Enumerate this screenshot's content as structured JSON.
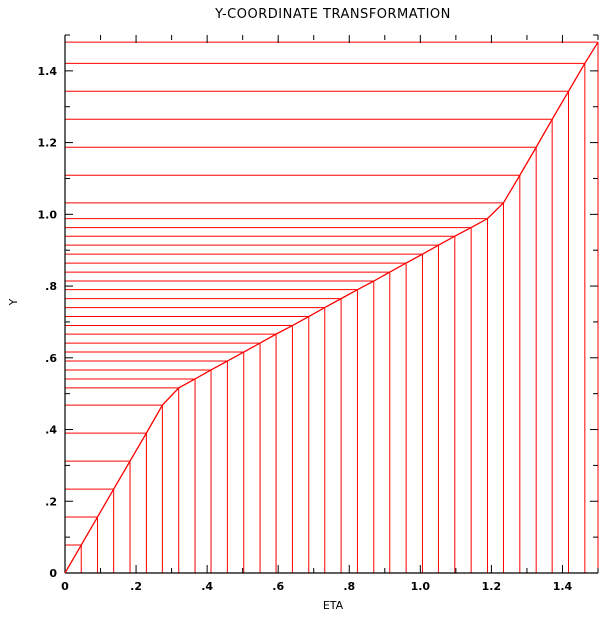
{
  "chart_data": {
    "type": "line",
    "title": "Y-COORDINATE TRANSFORMATION",
    "xlabel": "ETA",
    "ylabel": "Y",
    "xlim": [
      0,
      1.5
    ],
    "ylim": [
      0,
      1.5
    ],
    "x_ticks": [
      {
        "value": 0,
        "label": "0"
      },
      {
        "value": 0.2,
        "label": ".2"
      },
      {
        "value": 0.4,
        "label": ".4"
      },
      {
        "value": 0.6,
        "label": ".6"
      },
      {
        "value": 0.8,
        "label": ".8"
      },
      {
        "value": 1.0,
        "label": "1.0"
      },
      {
        "value": 1.2,
        "label": "1.2"
      },
      {
        "value": 1.4,
        "label": "1.4"
      }
    ],
    "y_ticks": [
      {
        "value": 0,
        "label": "0"
      },
      {
        "value": 0.2,
        "label": ".2"
      },
      {
        "value": 0.4,
        "label": ".4"
      },
      {
        "value": 0.6,
        "label": ".6"
      },
      {
        "value": 0.8,
        "label": ".8"
      },
      {
        "value": 1.0,
        "label": "1.0"
      },
      {
        "value": 1.2,
        "label": "1.2"
      },
      {
        "value": 1.4,
        "label": "1.4"
      }
    ],
    "line_color": "#ff0000",
    "series": [
      {
        "x": [
          0,
          0.0457,
          0.0914,
          0.137,
          0.183,
          0.229,
          0.274,
          0.32,
          0.366,
          0.411,
          0.457,
          0.503,
          0.549,
          0.594,
          0.64,
          0.686,
          0.731,
          0.777,
          0.823,
          0.869,
          0.914,
          0.96,
          1.006,
          1.051,
          1.097,
          1.143,
          1.189,
          1.234,
          1.28,
          1.326,
          1.371,
          1.417,
          1.463,
          1.5
        ],
        "y": [
          0,
          0.078,
          0.156,
          0.234,
          0.312,
          0.39,
          0.468,
          0.516,
          0.541,
          0.566,
          0.591,
          0.616,
          0.641,
          0.666,
          0.69,
          0.715,
          0.74,
          0.765,
          0.79,
          0.814,
          0.839,
          0.864,
          0.889,
          0.914,
          0.939,
          0.963,
          0.988,
          1.032,
          1.109,
          1.187,
          1.265,
          1.343,
          1.421,
          1.48
        ]
      }
    ]
  }
}
